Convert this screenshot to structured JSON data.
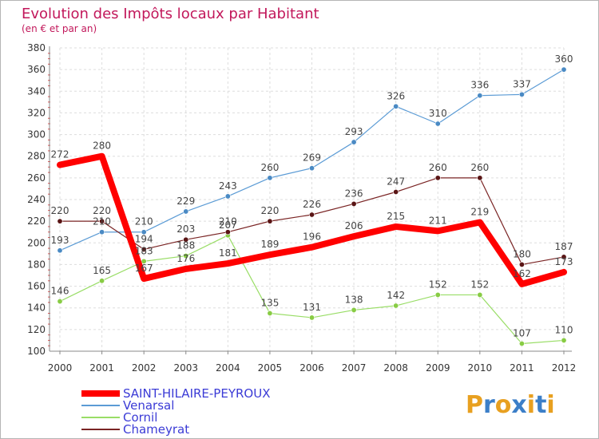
{
  "chart_data": {
    "type": "line",
    "title": "Evolution des Impôts locaux par Habitant",
    "subtitle": "(en € et par an)",
    "x": [
      "2000",
      "2001",
      "2002",
      "2003",
      "2004",
      "2005",
      "2006",
      "2007",
      "2008",
      "2009",
      "2010",
      "2011",
      "2012"
    ],
    "ylim": [
      100,
      380
    ],
    "yticks": [
      "100",
      "120",
      "140",
      "160",
      "180",
      "200",
      "220",
      "240",
      "260",
      "280",
      "300",
      "320",
      "340",
      "360",
      "380"
    ],
    "grid": true,
    "legend_position": "bottom-left",
    "series": [
      {
        "name": "Venarsal",
        "color": "#5b9bd5",
        "marker": "#4a8ac4",
        "width": 1.2,
        "values": [
          193,
          210,
          210,
          229,
          243,
          260,
          269,
          293,
          326,
          310,
          336,
          337,
          360
        ]
      },
      {
        "name": "Cornil",
        "color": "#99dd66",
        "marker": "#88cc44",
        "width": 1.2,
        "values": [
          146,
          165,
          183,
          188,
          207,
          135,
          131,
          138,
          142,
          152,
          152,
          107,
          110
        ]
      },
      {
        "name": "Chameyrat",
        "color": "#7a2424",
        "marker": "#5a1515",
        "width": 1.2,
        "values": [
          220,
          220,
          194,
          203,
          210,
          220,
          226,
          236,
          247,
          260,
          260,
          180,
          187
        ]
      },
      {
        "name": "SAINT-HILAIRE-PEYROUX",
        "color": "#ff0000",
        "marker": "#ff0000",
        "width": 8,
        "values": [
          272,
          280,
          167,
          176,
          181,
          189,
          196,
          206,
          215,
          211,
          219,
          162,
          173
        ]
      }
    ],
    "data_labels": {
      "Venarsal": [
        "193",
        "210",
        "210",
        "229",
        "243",
        "260",
        "269",
        "293",
        "326",
        "310",
        "336",
        "337",
        "360"
      ],
      "Cornil": [
        "146",
        "165",
        "183",
        "188",
        "207",
        "135",
        "131",
        "138",
        "142",
        "152",
        "152",
        "107",
        "110"
      ],
      "Chameyrat": [
        "220",
        "220",
        "194",
        "203",
        "210",
        "220",
        "226",
        "236",
        "247",
        "260",
        "260",
        "180",
        "187"
      ],
      "SAINT-HILAIRE-PEYROUX": [
        "272",
        "280",
        "167",
        "176",
        "181",
        "189",
        "196",
        "206",
        "215",
        "211",
        "219",
        "162",
        "173"
      ]
    },
    "legend_order": [
      "SAINT-HILAIRE-PEYROUX",
      "Venarsal",
      "Cornil",
      "Chameyrat"
    ]
  },
  "logo": {
    "text": "Proxiti",
    "colors": [
      "#e8a020",
      "#3c7fc8",
      "#e8a020",
      "#3c7fc8",
      "#e8a020",
      "#3c7fc8",
      "#e8a020"
    ]
  }
}
